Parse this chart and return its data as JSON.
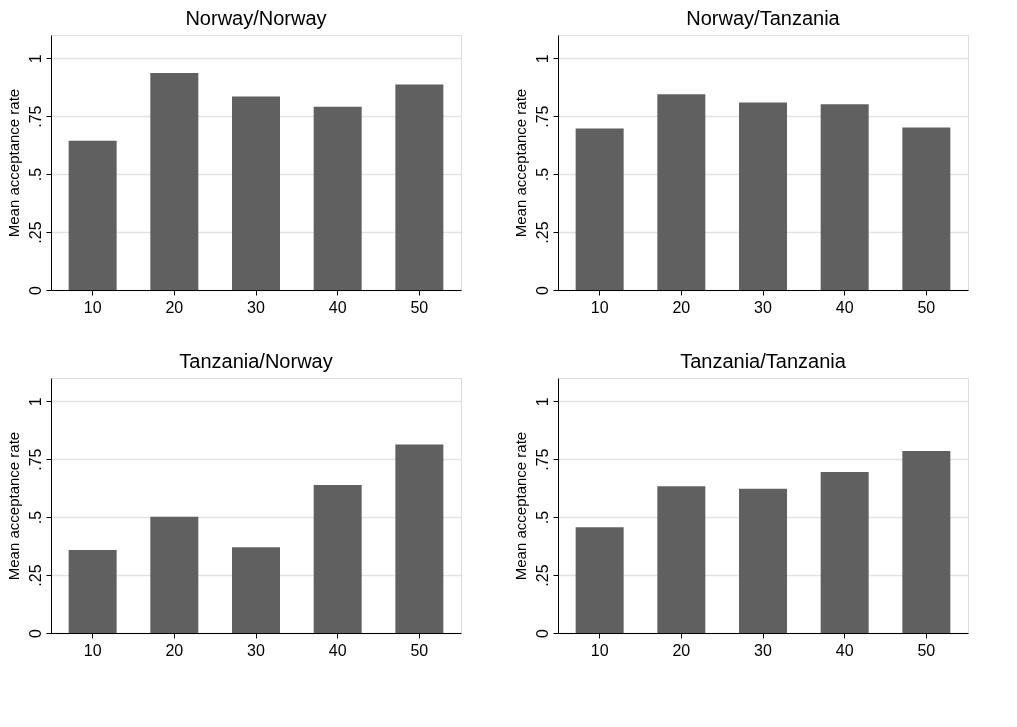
{
  "chart_data": [
    {
      "type": "bar",
      "title": "Norway/Norway",
      "ylabel": "Mean acceptance rate",
      "categories": [
        "10",
        "20",
        "30",
        "40",
        "50"
      ],
      "values": [
        0.644,
        0.936,
        0.835,
        0.791,
        0.886
      ],
      "color": "#606060",
      "ylim": [
        0,
        1.1
      ],
      "yticks": [
        0,
        {
          "value": 0.25,
          "label": ".25"
        },
        {
          "value": 0.5,
          "label": ".5"
        },
        {
          "value": 0.75,
          "label": ".75"
        },
        1
      ],
      "grid": "y"
    },
    {
      "type": "bar",
      "title": "Norway/Tanzania",
      "ylabel": "Mean acceptance rate",
      "categories": [
        "10",
        "20",
        "30",
        "40",
        "50"
      ],
      "values": [
        0.697,
        0.844,
        0.809,
        0.801,
        0.701
      ],
      "color": "#606060",
      "ylim": [
        0,
        1.1
      ],
      "yticks": [
        0,
        {
          "value": 0.25,
          "label": ".25"
        },
        {
          "value": 0.5,
          "label": ".5"
        },
        {
          "value": 0.75,
          "label": ".75"
        },
        1
      ],
      "grid": "y"
    },
    {
      "type": "bar",
      "title": "Tanzania/Norway",
      "ylabel": "Mean acceptance rate",
      "categories": [
        "10",
        "20",
        "30",
        "40",
        "50"
      ],
      "values": [
        0.358,
        0.501,
        0.37,
        0.638,
        0.813
      ],
      "color": "#606060",
      "ylim": [
        0,
        1.1
      ],
      "yticks": [
        0,
        {
          "value": 0.25,
          "label": ".25"
        },
        {
          "value": 0.5,
          "label": ".5"
        },
        {
          "value": 0.75,
          "label": ".75"
        },
        1
      ],
      "grid": "y"
    },
    {
      "type": "bar",
      "title": "Tanzania/Tanzania",
      "ylabel": "Mean acceptance rate",
      "categories": [
        "10",
        "20",
        "30",
        "40",
        "50"
      ],
      "values": [
        0.456,
        0.633,
        0.622,
        0.694,
        0.785
      ],
      "color": "#606060",
      "ylim": [
        0,
        1.1
      ],
      "yticks": [
        0,
        {
          "value": 0.25,
          "label": ".25"
        },
        {
          "value": 0.5,
          "label": ".5"
        },
        {
          "value": 0.75,
          "label": ".75"
        },
        1
      ],
      "grid": "y"
    }
  ]
}
